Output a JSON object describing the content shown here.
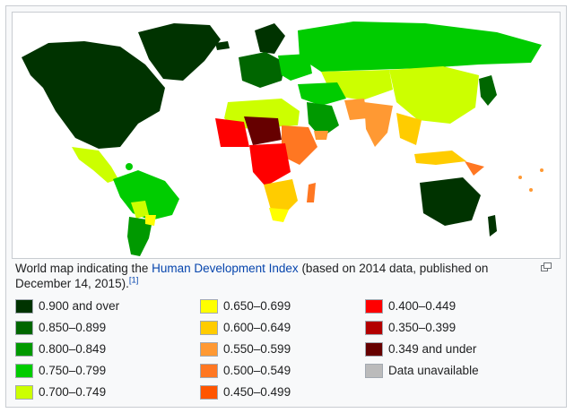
{
  "caption": {
    "prefix": "World map indicating the ",
    "link": "Human Development Index",
    "suffix": " (based on 2014 data, published on December 14, 2015).",
    "ref": "[1]"
  },
  "legend": [
    {
      "label": "0.900 and over",
      "color": "#003300"
    },
    {
      "label": "0.850–0.899",
      "color": "#006600"
    },
    {
      "label": "0.800–0.849",
      "color": "#009900"
    },
    {
      "label": "0.750–0.799",
      "color": "#00cc00"
    },
    {
      "label": "0.700–0.749",
      "color": "#ccff00"
    },
    {
      "label": "0.650–0.699",
      "color": "#ffff00"
    },
    {
      "label": "0.600–0.649",
      "color": "#ffcc00"
    },
    {
      "label": "0.550–0.599",
      "color": "#ff9933"
    },
    {
      "label": "0.500–0.549",
      "color": "#ff7722"
    },
    {
      "label": "0.450–0.499",
      "color": "#ff5500"
    },
    {
      "label": "0.400–0.449",
      "color": "#ff0000"
    },
    {
      "label": "0.350–0.399",
      "color": "#b30000"
    },
    {
      "label": "0.349 and under",
      "color": "#660000"
    },
    {
      "label": "Data unavailable",
      "color": "#bbbbbb"
    }
  ],
  "magnify_icon": "magnify-clip-icon"
}
